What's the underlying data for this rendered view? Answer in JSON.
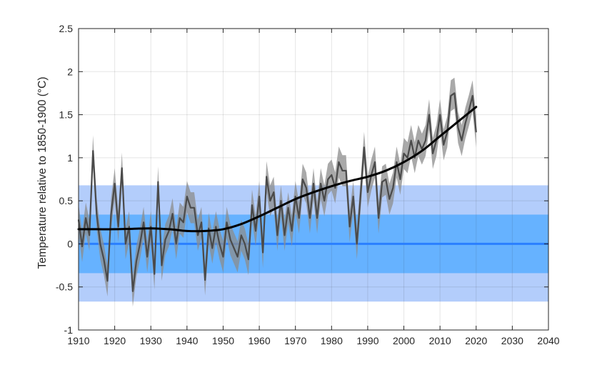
{
  "chart_data": {
    "type": "line",
    "title": "",
    "xlabel": "",
    "ylabel": "Temperature relative to 1850-1900 (°C)",
    "xlim": [
      1910,
      2040
    ],
    "ylim": [
      -1,
      2.5
    ],
    "xticks": [
      1910,
      1920,
      1930,
      1940,
      1950,
      1960,
      1970,
      1980,
      1990,
      2000,
      2010,
      2020,
      2030,
      2040
    ],
    "yticks": [
      -1,
      -0.5,
      0,
      0.5,
      1,
      1.5,
      2,
      2.5
    ],
    "xtick_labels": [
      "1910",
      "1920",
      "1930",
      "1940",
      "1950",
      "1960",
      "1970",
      "1980",
      "1990",
      "2000",
      "2010",
      "2020",
      "2030",
      "2040"
    ],
    "ytick_labels": [
      "-1",
      "-0.5",
      "0",
      "0.5",
      "1",
      "1.5",
      "2",
      "2.5"
    ],
    "grid": true,
    "bands": [
      {
        "range": [
          -0.67,
          0.68
        ],
        "color": "#b3cdfb"
      },
      {
        "range": [
          -0.34,
          0.34
        ],
        "color": "#66b2ff"
      }
    ],
    "baseline": {
      "value": 0,
      "color": "#2a7fff"
    },
    "annual": {
      "x": [
        1910,
        1911,
        1912,
        1913,
        1914,
        1915,
        1916,
        1917,
        1918,
        1919,
        1920,
        1921,
        1922,
        1923,
        1924,
        1925,
        1926,
        1927,
        1928,
        1929,
        1930,
        1931,
        1932,
        1933,
        1934,
        1935,
        1936,
        1937,
        1938,
        1939,
        1940,
        1941,
        1942,
        1943,
        1944,
        1945,
        1946,
        1947,
        1948,
        1949,
        1950,
        1951,
        1952,
        1953,
        1954,
        1955,
        1956,
        1957,
        1958,
        1959,
        1960,
        1961,
        1962,
        1963,
        1964,
        1965,
        1966,
        1967,
        1968,
        1969,
        1970,
        1971,
        1972,
        1973,
        1974,
        1975,
        1976,
        1977,
        1978,
        1979,
        1980,
        1981,
        1982,
        1983,
        1984,
        1985,
        1986,
        1987,
        1988,
        1989,
        1990,
        1991,
        1992,
        1993,
        1994,
        1995,
        1996,
        1997,
        1998,
        1999,
        2000,
        2001,
        2002,
        2003,
        2004,
        2005,
        2006,
        2007,
        2008,
        2009,
        2010,
        2011,
        2012,
        2013,
        2014,
        2015,
        2016,
        2017,
        2018,
        2019,
        2020
      ],
      "y": [
        0.28,
        -0.03,
        0.3,
        0.1,
        1.08,
        0.35,
        0.0,
        -0.18,
        -0.43,
        0.35,
        0.7,
        0.2,
        0.88,
        0.0,
        0.2,
        -0.55,
        -0.2,
        0.0,
        0.25,
        -0.15,
        0.2,
        -0.35,
        0.72,
        -0.25,
        0.05,
        0.15,
        0.35,
        0.0,
        0.3,
        0.25,
        0.55,
        0.42,
        0.42,
        0.1,
        0.25,
        -0.42,
        0.18,
        -0.05,
        0.2,
        0.0,
        -0.15,
        0.25,
        0.05,
        -0.05,
        -0.15,
        0.1,
        0.0,
        -0.18,
        0.45,
        0.15,
        0.55,
        -0.1,
        0.78,
        0.5,
        0.6,
        0.1,
        0.5,
        0.1,
        0.42,
        0.15,
        0.55,
        0.3,
        0.75,
        0.65,
        0.3,
        0.7,
        0.3,
        0.7,
        0.5,
        0.75,
        0.8,
        0.65,
        0.95,
        0.85,
        0.85,
        0.2,
        0.55,
        0.0,
        0.55,
        1.12,
        0.6,
        0.8,
        0.95,
        0.3,
        0.72,
        0.75,
        0.52,
        0.65,
        0.95,
        0.75,
        1.05,
        1.0,
        1.2,
        1.0,
        1.2,
        1.1,
        1.2,
        1.5,
        1.05,
        1.2,
        1.5,
        1.15,
        1.3,
        1.72,
        1.75,
        1.35,
        1.2,
        1.4,
        1.55,
        1.72,
        1.3
      ],
      "uncertainty": 0.18
    },
    "trend": {
      "x": [
        1910,
        1915,
        1920,
        1925,
        1930,
        1935,
        1940,
        1945,
        1950,
        1955,
        1960,
        1965,
        1970,
        1975,
        1980,
        1985,
        1990,
        1995,
        2000,
        2005,
        2010,
        2015,
        2020
      ],
      "y": [
        0.17,
        0.17,
        0.17,
        0.175,
        0.18,
        0.17,
        0.15,
        0.15,
        0.17,
        0.23,
        0.32,
        0.42,
        0.52,
        0.6,
        0.67,
        0.73,
        0.78,
        0.85,
        0.95,
        1.08,
        1.25,
        1.42,
        1.59
      ]
    }
  }
}
